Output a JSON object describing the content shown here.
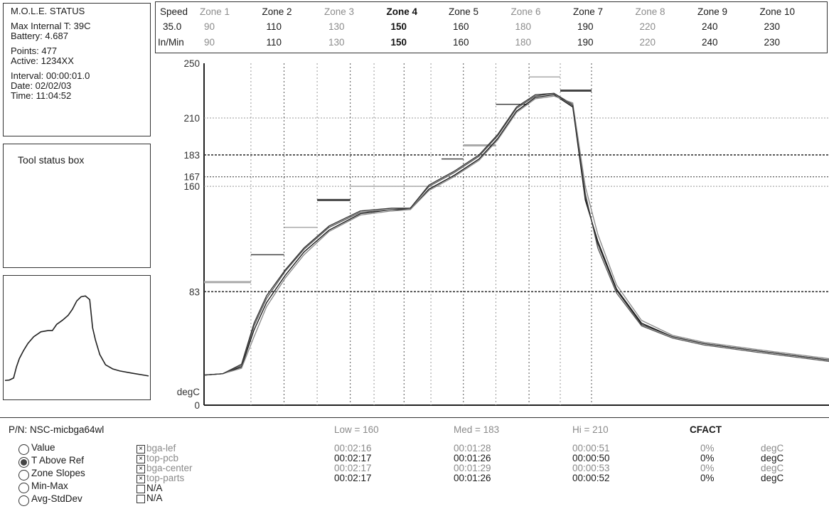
{
  "status": {
    "title": "M.O.L.E. STATUS",
    "max_internal": "Max Internal T: 39C",
    "battery": "Battery: 4.687",
    "points": "Points: 477",
    "active": "Active: 1234XX",
    "interval": "Interval: 00:00:01.0",
    "date": "Date: 02/02/03",
    "time": "Time: 11:04:52"
  },
  "tool_box": {
    "label": "Tool status box"
  },
  "zones": {
    "speed_label": "Speed",
    "speed_value": "35.0",
    "unit_label": "In/Min",
    "columns": [
      {
        "name": "Zone 1",
        "top": "90",
        "bottom": "90",
        "style": "dim"
      },
      {
        "name": "Zone 2",
        "top": "110",
        "bottom": "110",
        "style": "normal"
      },
      {
        "name": "Zone 3",
        "top": "130",
        "bottom": "130",
        "style": "dim"
      },
      {
        "name": "Zone 4",
        "top": "150",
        "bottom": "150",
        "style": "bold"
      },
      {
        "name": "Zone 5",
        "top": "160",
        "bottom": "160",
        "style": "normal"
      },
      {
        "name": "Zone 6",
        "top": "180",
        "bottom": "180",
        "style": "dim"
      },
      {
        "name": "Zone 7",
        "top": "190",
        "bottom": "190",
        "style": "normal"
      },
      {
        "name": "Zone 8",
        "top": "220",
        "bottom": "220",
        "style": "dim"
      },
      {
        "name": "Zone 9",
        "top": "240",
        "bottom": "240",
        "style": "normal"
      },
      {
        "name": "Zone 10",
        "top": "230",
        "bottom": "230",
        "style": "normal"
      }
    ]
  },
  "chart_data": {
    "type": "line",
    "ylabel": "degC",
    "ylim": [
      0,
      250
    ],
    "y_ticks": [
      "250",
      "210",
      "183",
      "167",
      "160",
      "83",
      "0"
    ],
    "y_tick_values": [
      250,
      210,
      183,
      167,
      160,
      83,
      0
    ],
    "ref_lines": [
      {
        "value": 183,
        "style": "heavy-dash"
      },
      {
        "value": 167,
        "style": "dash"
      },
      {
        "value": 160,
        "style": "light-dash"
      },
      {
        "value": 83,
        "style": "heavy-dash"
      },
      {
        "value": 210,
        "style": "light-dash"
      }
    ],
    "zone_setpoints": [
      {
        "from": 0,
        "to": 0.075,
        "value": 90
      },
      {
        "from": 0.075,
        "to": 0.128,
        "value": 110
      },
      {
        "from": 0.128,
        "to": 0.181,
        "value": 130
      },
      {
        "from": 0.181,
        "to": 0.234,
        "value": 150
      },
      {
        "from": 0.234,
        "to": 0.38,
        "value": 160
      },
      {
        "from": 0.38,
        "to": 0.415,
        "value": 180
      },
      {
        "from": 0.415,
        "to": 0.467,
        "value": 190
      },
      {
        "from": 0.467,
        "to": 0.52,
        "value": 220
      },
      {
        "from": 0.52,
        "to": 0.57,
        "value": 240
      },
      {
        "from": 0.57,
        "to": 0.62,
        "value": 230
      }
    ],
    "series": [
      {
        "x": [
          0,
          0.03,
          0.06,
          0.08,
          0.1,
          0.13,
          0.16,
          0.2,
          0.25,
          0.3,
          0.33,
          0.36,
          0.4,
          0.44,
          0.47,
          0.5,
          0.53,
          0.56,
          0.59,
          0.61,
          0.63,
          0.66,
          0.7,
          0.75,
          0.8,
          0.88,
          1.0
        ],
        "y": [
          22,
          23,
          28,
          55,
          75,
          95,
          112,
          128,
          140,
          143,
          143,
          158,
          168,
          180,
          195,
          215,
          225,
          227,
          218,
          150,
          120,
          85,
          60,
          50,
          45,
          40,
          33
        ]
      },
      {
        "x": [
          0,
          0.03,
          0.06,
          0.08,
          0.1,
          0.13,
          0.16,
          0.2,
          0.25,
          0.3,
          0.33,
          0.36,
          0.4,
          0.44,
          0.47,
          0.5,
          0.53,
          0.56,
          0.59,
          0.61,
          0.63,
          0.66,
          0.7,
          0.75,
          0.8,
          0.88,
          1.0
        ],
        "y": [
          22,
          23,
          29,
          58,
          78,
          98,
          114,
          130,
          141,
          143,
          144,
          160,
          170,
          182,
          197,
          217,
          226,
          228,
          220,
          155,
          115,
          82,
          58,
          49,
          44,
          39,
          32
        ]
      },
      {
        "x": [
          0,
          0.03,
          0.06,
          0.08,
          0.1,
          0.13,
          0.16,
          0.2,
          0.25,
          0.3,
          0.33,
          0.36,
          0.4,
          0.44,
          0.47,
          0.5,
          0.53,
          0.56,
          0.59,
          0.61,
          0.63,
          0.66,
          0.7,
          0.75,
          0.8,
          0.88,
          1.0
        ],
        "y": [
          22,
          23,
          27,
          50,
          72,
          93,
          110,
          127,
          139,
          142,
          143,
          157,
          167,
          179,
          194,
          214,
          224,
          226,
          221,
          160,
          125,
          88,
          62,
          51,
          46,
          41,
          34
        ]
      },
      {
        "x": [
          0,
          0.03,
          0.06,
          0.08,
          0.1,
          0.13,
          0.16,
          0.2,
          0.25,
          0.3,
          0.33,
          0.36,
          0.4,
          0.44,
          0.47,
          0.5,
          0.53,
          0.56,
          0.59,
          0.61,
          0.63,
          0.66,
          0.7,
          0.75,
          0.8,
          0.88,
          1.0
        ],
        "y": [
          22,
          23,
          30,
          60,
          80,
          99,
          115,
          131,
          142,
          144,
          144,
          161,
          171,
          183,
          198,
          218,
          227,
          228,
          219,
          152,
          118,
          84,
          59,
          50,
          45,
          40,
          33
        ]
      }
    ]
  },
  "bottom": {
    "pn": "P/N: NSC-micbga64wl",
    "low": "Low = 160",
    "med": "Med = 183",
    "hi": "Hi = 210",
    "cfact": "CFACT",
    "radios": [
      {
        "label": "Value",
        "selected": false
      },
      {
        "label": "T Above Ref",
        "selected": true
      },
      {
        "label": "Zone Slopes",
        "selected": false
      },
      {
        "label": "Min-Max",
        "selected": false
      },
      {
        "label": "Avg-StdDev",
        "selected": false
      }
    ],
    "rows": [
      {
        "name": "bga-lef",
        "checked": true,
        "low": "00:02:16",
        "med": "00:01:28",
        "hi": "00:00:51",
        "cfact": "0%",
        "unit": "degC"
      },
      {
        "name": "top-pcb",
        "checked": true,
        "low": "00:02:17",
        "med": "00:01:26",
        "hi": "00:00:50",
        "cfact": "0%",
        "unit": "degC"
      },
      {
        "name": "bga-center",
        "checked": true,
        "low": "00:02:17",
        "med": "00:01:29",
        "hi": "00:00:53",
        "cfact": "0%",
        "unit": "degC"
      },
      {
        "name": "top-parts",
        "checked": true,
        "low": "00:02:17",
        "med": "00:01:26",
        "hi": "00:00:52",
        "cfact": "0%",
        "unit": "degC"
      },
      {
        "name": "N/A",
        "checked": false
      },
      {
        "name": "N/A",
        "checked": false
      }
    ]
  }
}
